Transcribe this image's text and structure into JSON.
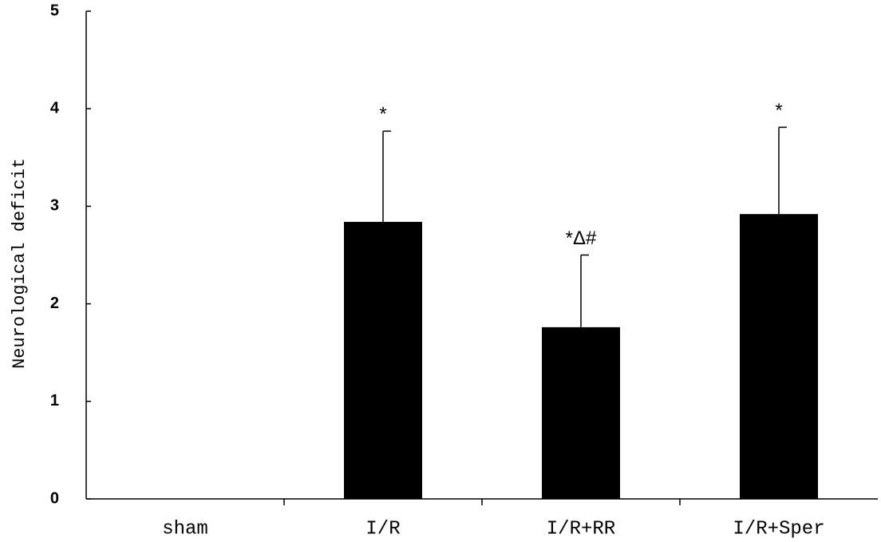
{
  "chart_data": {
    "type": "bar",
    "y_label": "Neurological deficit",
    "categories": [
      "sham",
      "I/R",
      "I/R+RR",
      "I/R+Sper"
    ],
    "values": [
      0,
      2.84,
      1.76,
      2.92
    ],
    "errors": [
      0,
      0.93,
      0.74,
      0.89
    ],
    "annotations": [
      null,
      "*",
      "*Δ#",
      "*"
    ],
    "color": "#000000",
    "ylim": [
      0,
      5
    ],
    "yticks": [
      0,
      1,
      2,
      3,
      4,
      5
    ],
    "grid": false
  }
}
